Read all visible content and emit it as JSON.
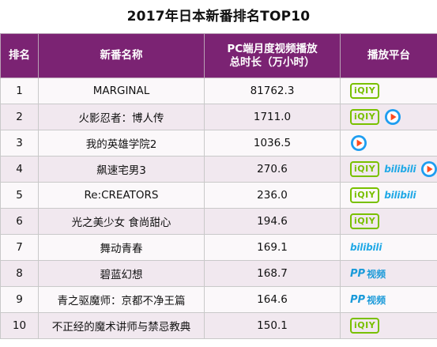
{
  "title": "2017年日本新番排名TOP10",
  "headers": {
    "rank": "排名",
    "name": "新番名称",
    "duration_line1": "PC端月度视频播放",
    "duration_line2": "总时长（万小时）",
    "platform": "播放平台"
  },
  "logos": {
    "iqiyi": "iQIY",
    "bilibili": "bilibili",
    "pptv_pp": "PP",
    "pptv_text": "视频"
  },
  "rows": [
    {
      "rank": "1",
      "name": "MARGINAL",
      "value": "81762.3",
      "platforms": [
        "iqiyi-icon"
      ]
    },
    {
      "rank": "2",
      "name": "火影忍者：博人传",
      "value": "1711.0",
      "platforms": [
        "iqiyi-icon",
        "tencent-video-icon"
      ]
    },
    {
      "rank": "3",
      "name": "我的英雄学院2",
      "value": "1036.5",
      "platforms": [
        "tencent-video-icon"
      ]
    },
    {
      "rank": "4",
      "name": "飙速宅男3",
      "value": "270.6",
      "platforms": [
        "iqiyi-icon",
        "bilibili-icon",
        "tencent-video-icon"
      ]
    },
    {
      "rank": "5",
      "name": "Re:CREATORS",
      "value": "236.0",
      "platforms": [
        "iqiyi-icon",
        "bilibili-icon"
      ]
    },
    {
      "rank": "6",
      "name": "光之美少女 食尚甜心",
      "value": "194.6",
      "platforms": [
        "iqiyi-icon"
      ]
    },
    {
      "rank": "7",
      "name": "舞动青春",
      "value": "169.1",
      "platforms": [
        "bilibili-icon"
      ]
    },
    {
      "rank": "8",
      "name": "碧蓝幻想",
      "value": "168.7",
      "platforms": [
        "pptv-icon"
      ]
    },
    {
      "rank": "9",
      "name": "青之驱魔师：京都不净王篇",
      "value": "164.6",
      "platforms": [
        "pptv-icon"
      ]
    },
    {
      "rank": "10",
      "name": "不正经的魔术讲师与禁忌教典",
      "value": "150.1",
      "platforms": [
        "iqiyi-icon"
      ]
    }
  ]
}
